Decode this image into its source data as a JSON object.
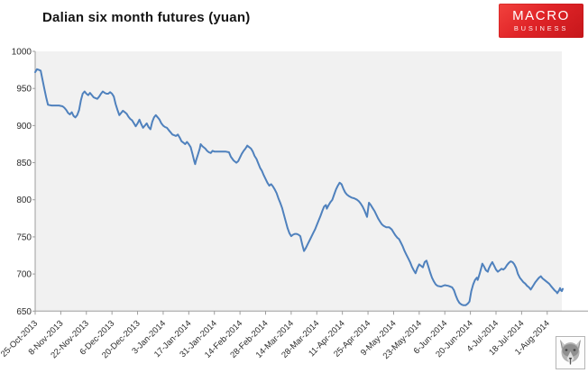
{
  "header": {
    "title": "Dalian six month futures (yuan)",
    "logo": {
      "line1": "MACRO",
      "line2": "BUSINESS",
      "bg_color": "#e02428",
      "text_color": "#ffffff"
    }
  },
  "branding": {
    "corner_icon": "wolf-icon"
  },
  "chart_data": {
    "type": "line",
    "title": "Dalian six month futures (yuan)",
    "xlabel": "",
    "ylabel": "",
    "legend": "none",
    "grid": false,
    "plot_bg": "#f1f1f1",
    "axis_color": "#9d9d9d",
    "label_color": "#2b2b2b",
    "ylim": [
      650,
      1000
    ],
    "y_ticks": [
      650,
      700,
      750,
      800,
      850,
      900,
      950,
      1000
    ],
    "x_tick_interval_days": 14,
    "x_days_max": 288,
    "categories": [
      "25-Oct-2013",
      "8-Nov-2013",
      "22-Nov-2013",
      "6-Dec-2013",
      "20-Dec-2013",
      "3-Jan-2014",
      "17-Jan-2014",
      "31-Jan-2014",
      "14-Feb-2014",
      "28-Feb-2014",
      "14-Mar-2014",
      "28-Mar-2014",
      "11-Apr-2014",
      "25-Apr-2014",
      "9-May-2014",
      "23-May-2014",
      "6-Jun-2014",
      "20-Jun-2014",
      "4-Jul-2014",
      "18-Jul-2014",
      "1-Aug-2014"
    ],
    "series": [
      {
        "name": "Dalian six month futures (yuan)",
        "color": "#4f81bd",
        "points": [
          [
            0,
            972
          ],
          [
            1,
            976
          ],
          [
            2,
            975
          ],
          [
            3,
            974
          ],
          [
            4,
            962
          ],
          [
            5,
            950
          ],
          [
            6,
            938
          ],
          [
            7,
            928
          ],
          [
            9,
            927
          ],
          [
            11,
            927
          ],
          [
            13,
            927
          ],
          [
            15,
            926
          ],
          [
            16,
            924
          ],
          [
            17,
            921
          ],
          [
            18,
            917
          ],
          [
            19,
            915
          ],
          [
            20,
            918
          ],
          [
            21,
            913
          ],
          [
            22,
            911
          ],
          [
            23,
            914
          ],
          [
            24,
            921
          ],
          [
            25,
            934
          ],
          [
            26,
            943
          ],
          [
            27,
            946
          ],
          [
            28,
            943
          ],
          [
            29,
            941
          ],
          [
            30,
            944
          ],
          [
            31,
            941
          ],
          [
            32,
            938
          ],
          [
            33,
            937
          ],
          [
            34,
            936
          ],
          [
            35,
            939
          ],
          [
            36,
            943
          ],
          [
            37,
            946
          ],
          [
            38,
            944
          ],
          [
            39,
            943
          ],
          [
            40,
            943
          ],
          [
            41,
            945
          ],
          [
            42,
            943
          ],
          [
            43,
            939
          ],
          [
            44,
            929
          ],
          [
            45,
            921
          ],
          [
            46,
            914
          ],
          [
            47,
            917
          ],
          [
            48,
            920
          ],
          [
            49,
            918
          ],
          [
            50,
            916
          ],
          [
            51,
            912
          ],
          [
            52,
            909
          ],
          [
            53,
            907
          ],
          [
            54,
            903
          ],
          [
            55,
            899
          ],
          [
            56,
            903
          ],
          [
            57,
            908
          ],
          [
            58,
            902
          ],
          [
            59,
            897
          ],
          [
            60,
            900
          ],
          [
            61,
            903
          ],
          [
            62,
            898
          ],
          [
            63,
            895
          ],
          [
            64,
            905
          ],
          [
            65,
            911
          ],
          [
            66,
            914
          ],
          [
            67,
            911
          ],
          [
            68,
            908
          ],
          [
            69,
            903
          ],
          [
            70,
            900
          ],
          [
            71,
            898
          ],
          [
            72,
            897
          ],
          [
            73,
            894
          ],
          [
            74,
            891
          ],
          [
            75,
            888
          ],
          [
            76,
            887
          ],
          [
            77,
            886
          ],
          [
            78,
            888
          ],
          [
            79,
            884
          ],
          [
            80,
            879
          ],
          [
            81,
            877
          ],
          [
            82,
            875
          ],
          [
            83,
            878
          ],
          [
            84,
            875
          ],
          [
            85,
            871
          ],
          [
            86,
            862
          ],
          [
            87,
            852
          ],
          [
            87.5,
            848
          ],
          [
            88,
            853
          ],
          [
            89,
            861
          ],
          [
            90,
            869
          ],
          [
            90.5,
            875
          ],
          [
            91.5,
            872
          ],
          [
            93,
            869
          ],
          [
            94,
            866
          ],
          [
            95,
            864
          ],
          [
            96,
            863
          ],
          [
            97,
            866
          ],
          [
            98,
            865
          ],
          [
            100,
            865
          ],
          [
            102,
            865
          ],
          [
            104,
            865
          ],
          [
            106,
            864
          ],
          [
            107,
            858
          ],
          [
            108.5,
            853
          ],
          [
            110,
            850
          ],
          [
            111,
            852
          ],
          [
            112,
            857
          ],
          [
            113,
            862
          ],
          [
            114,
            866
          ],
          [
            115,
            869
          ],
          [
            116,
            873
          ],
          [
            117,
            871
          ],
          [
            118,
            869
          ],
          [
            119,
            865
          ],
          [
            120,
            859
          ],
          [
            121,
            855
          ],
          [
            122,
            849
          ],
          [
            123,
            843
          ],
          [
            124,
            839
          ],
          [
            125,
            833
          ],
          [
            126,
            828
          ],
          [
            127,
            823
          ],
          [
            128,
            819
          ],
          [
            129,
            821
          ],
          [
            130,
            818
          ],
          [
            131,
            814
          ],
          [
            132,
            809
          ],
          [
            133,
            802
          ],
          [
            134,
            796
          ],
          [
            135,
            789
          ],
          [
            136,
            780
          ],
          [
            137,
            771
          ],
          [
            138,
            762
          ],
          [
            139,
            755
          ],
          [
            140,
            751
          ],
          [
            141,
            753
          ],
          [
            142,
            754
          ],
          [
            143,
            754
          ],
          [
            144,
            753
          ],
          [
            145,
            751
          ],
          [
            146,
            740
          ],
          [
            147,
            731
          ],
          [
            148,
            735
          ],
          [
            149,
            740
          ],
          [
            150,
            745
          ],
          [
            151,
            750
          ],
          [
            152,
            755
          ],
          [
            153,
            760
          ],
          [
            154,
            766
          ],
          [
            155,
            772
          ],
          [
            156,
            778
          ],
          [
            157,
            785
          ],
          [
            158,
            791
          ],
          [
            159,
            793
          ],
          [
            159.5,
            788
          ],
          [
            160.5,
            793
          ],
          [
            161.5,
            797
          ],
          [
            162.5,
            800
          ],
          [
            163.5,
            807
          ],
          [
            164.5,
            814
          ],
          [
            165.5,
            819
          ],
          [
            166.5,
            823
          ],
          [
            167.5,
            821
          ],
          [
            168.5,
            815
          ],
          [
            169.5,
            810
          ],
          [
            170.5,
            807
          ],
          [
            171.5,
            805
          ],
          [
            173,
            803
          ],
          [
            174.5,
            802
          ],
          [
            176,
            800
          ],
          [
            177,
            798
          ],
          [
            178,
            795
          ],
          [
            179,
            791
          ],
          [
            180,
            786
          ],
          [
            181,
            780
          ],
          [
            181.5,
            777
          ],
          [
            182.5,
            796
          ],
          [
            183.5,
            793
          ],
          [
            184.5,
            789
          ],
          [
            185.5,
            785
          ],
          [
            186.5,
            780
          ],
          [
            187.5,
            775
          ],
          [
            188.5,
            771
          ],
          [
            189.5,
            767
          ],
          [
            190.5,
            765
          ],
          [
            192,
            763
          ],
          [
            193.5,
            763
          ],
          [
            195,
            760
          ],
          [
            196,
            756
          ],
          [
            197,
            752
          ],
          [
            198,
            749
          ],
          [
            199,
            747
          ],
          [
            200,
            742
          ],
          [
            201,
            737
          ],
          [
            202,
            731
          ],
          [
            203,
            726
          ],
          [
            204,
            721
          ],
          [
            205,
            716
          ],
          [
            206,
            710
          ],
          [
            207,
            705
          ],
          [
            208,
            701
          ],
          [
            209,
            708
          ],
          [
            210,
            713
          ],
          [
            211,
            711
          ],
          [
            212,
            709
          ],
          [
            213,
            716
          ],
          [
            214,
            718
          ],
          [
            215,
            710
          ],
          [
            216,
            702
          ],
          [
            217,
            695
          ],
          [
            218,
            690
          ],
          [
            219,
            686
          ],
          [
            220,
            684
          ],
          [
            222,
            683
          ],
          [
            224,
            685
          ],
          [
            226,
            684
          ],
          [
            228,
            682
          ],
          [
            229,
            678
          ],
          [
            230,
            671
          ],
          [
            231,
            665
          ],
          [
            232,
            661
          ],
          [
            233,
            659
          ],
          [
            234,
            658
          ],
          [
            235.5,
            658
          ],
          [
            236.5,
            660
          ],
          [
            237.5,
            663
          ],
          [
            238.5,
            677
          ],
          [
            239.5,
            686
          ],
          [
            240.5,
            692
          ],
          [
            241.5,
            695
          ],
          [
            242,
            692
          ],
          [
            243,
            700
          ],
          [
            244,
            709
          ],
          [
            244.5,
            714
          ],
          [
            245.5,
            710
          ],
          [
            246.5,
            705
          ],
          [
            247.5,
            703
          ],
          [
            248,
            707
          ],
          [
            249,
            712
          ],
          [
            250,
            716
          ],
          [
            251,
            711
          ],
          [
            252,
            706
          ],
          [
            253,
            703
          ],
          [
            254,
            705
          ],
          [
            255,
            707
          ],
          [
            256,
            706
          ],
          [
            257,
            708
          ],
          [
            258,
            712
          ],
          [
            259,
            715
          ],
          [
            260,
            717
          ],
          [
            261,
            716
          ],
          [
            262,
            713
          ],
          [
            263,
            708
          ],
          [
            264,
            700
          ],
          [
            265,
            695
          ],
          [
            266,
            692
          ],
          [
            267,
            689
          ],
          [
            268,
            687
          ],
          [
            269,
            684
          ],
          [
            270,
            682
          ],
          [
            271,
            679
          ],
          [
            271.5,
            681
          ],
          [
            272.5,
            685
          ],
          [
            273.5,
            689
          ],
          [
            274.5,
            692
          ],
          [
            275.5,
            695
          ],
          [
            276.5,
            697
          ],
          [
            277.5,
            694
          ],
          [
            278.5,
            692
          ],
          [
            280,
            689
          ],
          [
            281,
            687
          ],
          [
            282,
            684
          ],
          [
            283,
            681
          ],
          [
            284,
            678
          ],
          [
            285,
            676
          ],
          [
            285.5,
            674
          ],
          [
            286.5,
            678
          ],
          [
            287,
            681
          ],
          [
            287.5,
            678
          ],
          [
            288,
            677
          ],
          [
            288.5,
            680
          ]
        ]
      }
    ]
  }
}
